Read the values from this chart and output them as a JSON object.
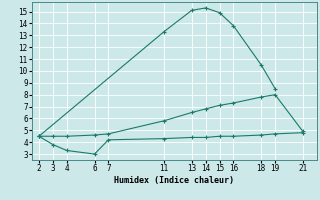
{
  "xlabel": "Humidex (Indice chaleur)",
  "bg_color": "#cce8e8",
  "grid_color": "#c8dede",
  "grid_color_major": "#b8d0d0",
  "line_color": "#1a7a6a",
  "xlim": [
    1.5,
    22
  ],
  "ylim": [
    2.5,
    15.8
  ],
  "xticks": [
    2,
    3,
    4,
    6,
    7,
    11,
    13,
    14,
    15,
    16,
    18,
    19,
    21
  ],
  "yticks": [
    3,
    4,
    5,
    6,
    7,
    8,
    9,
    10,
    11,
    12,
    13,
    14,
    15
  ],
  "line_max_x": [
    2,
    11,
    13,
    14,
    15,
    16,
    18,
    19
  ],
  "line_max_y": [
    4.5,
    13.3,
    15.1,
    15.3,
    14.9,
    13.8,
    10.5,
    8.5
  ],
  "line_mid_x": [
    2,
    3,
    4,
    6,
    7,
    11,
    13,
    14,
    15,
    16,
    18,
    19,
    21
  ],
  "line_mid_y": [
    4.5,
    4.5,
    4.5,
    4.6,
    4.7,
    5.8,
    6.5,
    6.8,
    7.1,
    7.3,
    7.8,
    8.0,
    4.9
  ],
  "line_min_x": [
    2,
    3,
    4,
    6,
    7,
    11,
    13,
    14,
    15,
    16,
    18,
    19,
    21
  ],
  "line_min_y": [
    4.5,
    3.8,
    3.3,
    3.0,
    4.2,
    4.3,
    4.4,
    4.4,
    4.5,
    4.5,
    4.6,
    4.7,
    4.8
  ]
}
